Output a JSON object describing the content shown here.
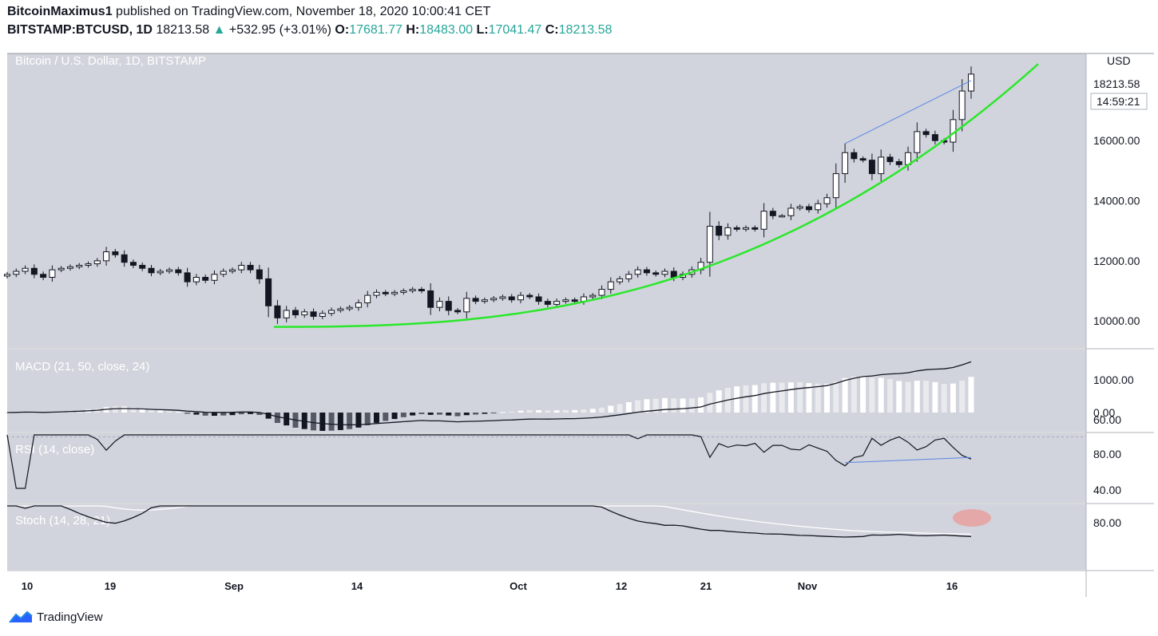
{
  "header": {
    "author": "BitcoinMaximus1",
    "published_text": "published on TradingView.com, November 18, 2020 10:00:41 CET",
    "symbol": "BITSTAMP:BTCUSD, 1D",
    "last": "18213.58",
    "change": "+532.95 (+3.01%)",
    "o_label": "O:",
    "o": "17681.77",
    "h_label": "H:",
    "h": "18483.00",
    "l_label": "L:",
    "l": "17041.47",
    "c_label": "C:",
    "c": "18213.58"
  },
  "price_pane_title": "Bitcoin / U.S. Dollar, 1D, BITSTAMP",
  "currency": "USD",
  "price_tag": "18213.58",
  "countdown": "14:59:21",
  "macd_title": "MACD (21, 50, close, 24)",
  "rsi_title": "RSI (14, close)",
  "stoch_title": "Stoch (14, 28, 21)",
  "footer_brand": "TradingView",
  "colors": {
    "pane_bg": "#d1d4dc",
    "curve": "#2be72b",
    "trendline": "#5b86e5",
    "highlight": "#e8a0a0"
  },
  "chart_data": {
    "type": "candlestick",
    "x_labels": [
      "10",
      "19",
      "Sep",
      "14",
      "Oct",
      "12",
      "21",
      "Nov",
      "16"
    ],
    "price_axis": {
      "ticks": [
        "10000.00",
        "12000.00",
        "14000.00",
        "16000.00"
      ],
      "range": [
        9100,
        18900
      ]
    },
    "macd_axis": {
      "ticks": [
        "0.00",
        "1000.00"
      ]
    },
    "rsi_axis": {
      "ticks": [
        "60.00",
        "80.00"
      ],
      "dashed_level": 70
    },
    "stoch_axis": {
      "ticks": [
        "40.00",
        "80.00"
      ]
    },
    "closes": [
      11550,
      11650,
      11750,
      11550,
      11450,
      11700,
      11750,
      11800,
      11850,
      11900,
      12000,
      12300,
      12200,
      11950,
      11850,
      11750,
      11600,
      11650,
      11700,
      11600,
      11300,
      11450,
      11350,
      11550,
      11650,
      11700,
      11850,
      11700,
      11400,
      10500,
      10100,
      10350,
      10200,
      10300,
      10150,
      10250,
      10350,
      10400,
      10450,
      10600,
      10850,
      10950,
      10900,
      10950,
      11000,
      11050,
      11000,
      10450,
      10650,
      10350,
      10300,
      10750,
      10650,
      10700,
      10750,
      10800,
      10700,
      10850,
      10800,
      10650,
      10550,
      10650,
      10700,
      10650,
      10800,
      10850,
      11050,
      11300,
      11400,
      11550,
      11700,
      11600,
      11550,
      11650,
      11450,
      11550,
      11700,
      11950,
      13150,
      12850,
      13100,
      13050,
      13100,
      13050,
      13650,
      13500,
      13500,
      13750,
      13800,
      13700,
      13900,
      14100,
      14900,
      15600,
      15400,
      15350,
      14900,
      15450,
      15300,
      15200,
      15600,
      16300,
      16200,
      16000,
      15950,
      16700,
      17650,
      18213
    ],
    "trendline_price": {
      "from": 15900,
      "to": 18000
    },
    "curve_support": {
      "start": 9800,
      "end": 18550
    }
  }
}
